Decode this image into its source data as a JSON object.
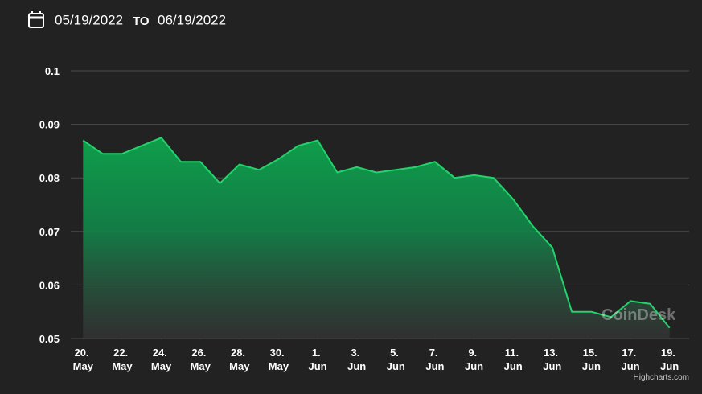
{
  "header": {
    "start_date": "05/19/2022",
    "separator": "TO",
    "end_date": "06/19/2022"
  },
  "chart_data": {
    "type": "area",
    "x": [
      "2022-05-20",
      "2022-05-21",
      "2022-05-22",
      "2022-05-23",
      "2022-05-24",
      "2022-05-25",
      "2022-05-26",
      "2022-05-27",
      "2022-05-28",
      "2022-05-29",
      "2022-05-30",
      "2022-05-31",
      "2022-06-01",
      "2022-06-02",
      "2022-06-03",
      "2022-06-04",
      "2022-06-05",
      "2022-06-06",
      "2022-06-07",
      "2022-06-08",
      "2022-06-09",
      "2022-06-10",
      "2022-06-11",
      "2022-06-12",
      "2022-06-13",
      "2022-06-14",
      "2022-06-15",
      "2022-06-16",
      "2022-06-17",
      "2022-06-18",
      "2022-06-19"
    ],
    "series": [
      {
        "color": "#22d36b",
        "values": [
          0.087,
          0.0845,
          0.0845,
          0.086,
          0.0875,
          0.083,
          0.083,
          0.079,
          0.0825,
          0.0815,
          0.0835,
          0.086,
          0.087,
          0.081,
          0.082,
          0.081,
          0.0815,
          0.082,
          0.083,
          0.08,
          0.0805,
          0.08,
          0.076,
          0.071,
          0.067,
          0.055,
          0.055,
          0.054,
          0.057,
          0.0565,
          0.052
        ]
      }
    ],
    "xlim": [
      "2022-05-19",
      "2022-06-20"
    ],
    "xticks": [
      {
        "value": "2022-05-20",
        "label": "20. May"
      },
      {
        "value": "2022-05-22",
        "label": "22. May"
      },
      {
        "value": "2022-05-24",
        "label": "24. May"
      },
      {
        "value": "2022-05-26",
        "label": "26. May"
      },
      {
        "value": "2022-05-28",
        "label": "28. May"
      },
      {
        "value": "2022-05-30",
        "label": "30. May"
      },
      {
        "value": "2022-06-01",
        "label": "1. Jun"
      },
      {
        "value": "2022-06-03",
        "label": "3. Jun"
      },
      {
        "value": "2022-06-05",
        "label": "5. Jun"
      },
      {
        "value": "2022-06-07",
        "label": "7. Jun"
      },
      {
        "value": "2022-06-09",
        "label": "9. Jun"
      },
      {
        "value": "2022-06-11",
        "label": "11. Jun"
      },
      {
        "value": "2022-06-13",
        "label": "13. Jun"
      },
      {
        "value": "2022-06-15",
        "label": "15. Jun"
      },
      {
        "value": "2022-06-17",
        "label": "17. Jun"
      },
      {
        "value": "2022-06-19",
        "label": "19. Jun"
      }
    ],
    "ylim": [
      0.05,
      0.1
    ],
    "yticks": [
      0.05,
      0.06,
      0.07,
      0.08,
      0.09,
      0.1
    ],
    "grid": true,
    "watermark": "CoinDesk",
    "credits": "Highcharts.com"
  }
}
